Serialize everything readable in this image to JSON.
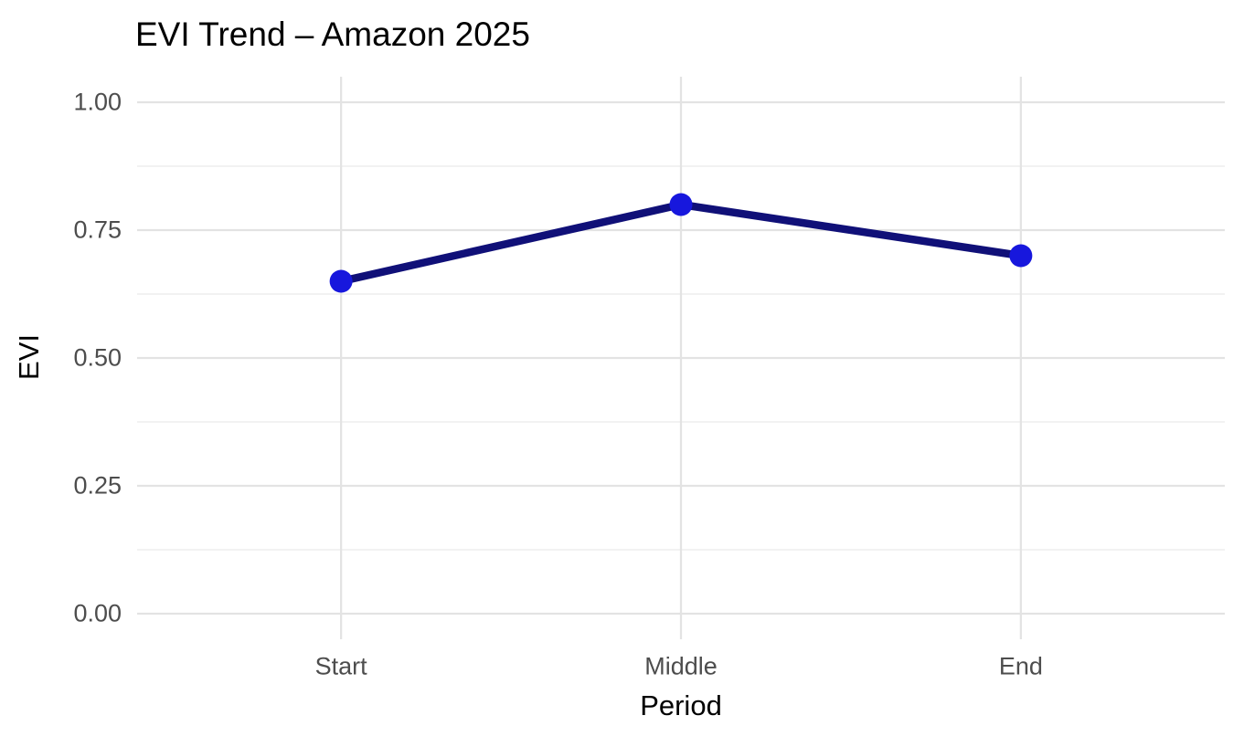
{
  "chart_data": {
    "type": "line",
    "title": "EVI Trend – Amazon 2025",
    "xlabel": "Period",
    "ylabel": "EVI",
    "categories": [
      "Start",
      "Middle",
      "End"
    ],
    "series": [
      {
        "name": "EVI",
        "values": [
          0.65,
          0.8,
          0.7
        ]
      }
    ],
    "ylim": [
      0.0,
      1.0
    ],
    "yticks": [
      0.0,
      0.25,
      0.5,
      0.75,
      1.0
    ],
    "ytick_labels": [
      "0.00",
      "0.25",
      "0.50",
      "0.75",
      "1.00"
    ],
    "minor_yticks": [
      0.125,
      0.375,
      0.625,
      0.875
    ],
    "grid": true,
    "legend_position": "none",
    "colors": {
      "line": "#101078",
      "point": "#1717dd",
      "grid_major": "#e3e3e3",
      "grid_minor": "#eeeeee",
      "tick_text": "#4d4d4d",
      "title_text": "#000000",
      "background": "#ffffff"
    }
  }
}
